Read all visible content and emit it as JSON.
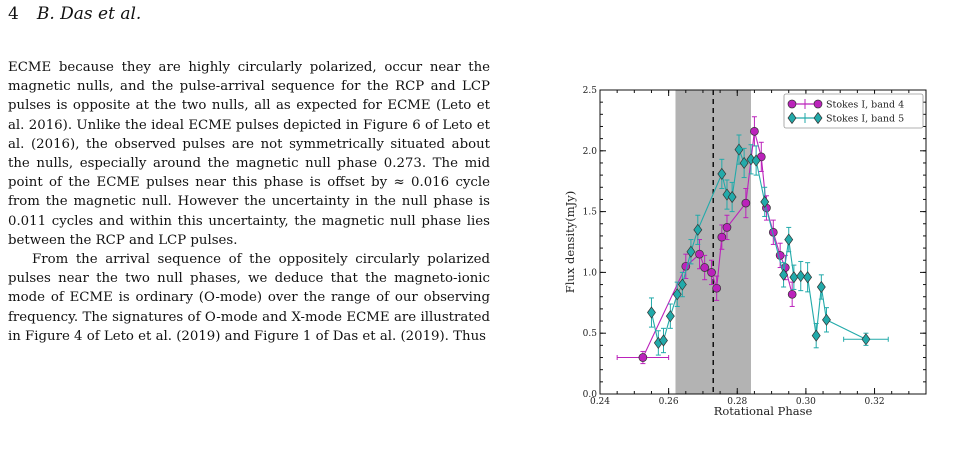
{
  "header": {
    "page_number": "4",
    "authors": "B. Das et al."
  },
  "body_text": {
    "paragraph1": "ECME because they are highly circularly polarized, occur near the magnetic nulls, and the pulse-arrival sequence for the RCP and LCP pulses is opposite at the two nulls, all as expected for ECME (Leto et al. 2016). Unlike the ideal ECME pulses depicted in Figure 6 of Leto et al. (2016), the observed pulses are not symmetrically situated about the nulls, especially around the magnetic null phase 0.273. The mid point of the ECME pulses near this phase is offset by ≈ 0.016 cycle from the magnetic null. However the uncertainty in the null phase is 0.011 cycles and within this uncertainty, the magnetic null phase lies between the RCP and LCP pulses.",
    "paragraph2": "From the arrival sequence of the oppositely circularly polarized pulses near the two null phases, we deduce that the magneto-ionic mode of ECME is ordinary (O-mode) over the range of our observing frequency. The signatures of O-mode and X-mode ECME are illustrated in Figure 4 of Leto et al. (2019) and Figure 1 of Das et al. (2019). Thus"
  },
  "chart_data": {
    "type": "scatter",
    "xlabel": "Rotational Phase",
    "ylabel": "Flux density(mJy)",
    "xlim": [
      0.24,
      0.335
    ],
    "ylim": [
      0.0,
      2.5
    ],
    "xticks": [
      "0.24",
      "0.26",
      "0.28",
      "0.30",
      "0.32"
    ],
    "yticks": [
      "0.0",
      "0.5",
      "1.0",
      "1.5",
      "2.0",
      "2.5"
    ],
    "legend_position": "top-right",
    "shaded_band": {
      "x0": 0.262,
      "x1": 0.284,
      "color": "#b3b3b3"
    },
    "vertical_line": {
      "x": 0.273,
      "style": "dashed"
    },
    "series": [
      {
        "name": "Stokes I, band 4",
        "color": "#bb22bb",
        "marker": "circle",
        "points": [
          {
            "x": 0.2525,
            "y": 0.3,
            "xerr": 0.0075,
            "yerr": 0.05
          },
          {
            "x": 0.265,
            "y": 1.05,
            "xerr": 0,
            "yerr": 0.1
          },
          {
            "x": 0.269,
            "y": 1.15,
            "xerr": 0,
            "yerr": 0.12
          },
          {
            "x": 0.2705,
            "y": 1.04,
            "xerr": 0,
            "yerr": 0.1
          },
          {
            "x": 0.2725,
            "y": 1.0,
            "xerr": 0,
            "yerr": 0.1
          },
          {
            "x": 0.274,
            "y": 0.87,
            "xerr": 0,
            "yerr": 0.1
          },
          {
            "x": 0.2755,
            "y": 1.29,
            "xerr": 0,
            "yerr": 0.1
          },
          {
            "x": 0.277,
            "y": 1.37,
            "xerr": 0,
            "yerr": 0.1
          },
          {
            "x": 0.2825,
            "y": 1.57,
            "xerr": 0,
            "yerr": 0.12
          },
          {
            "x": 0.285,
            "y": 2.16,
            "xerr": 0,
            "yerr": 0.12
          },
          {
            "x": 0.287,
            "y": 1.95,
            "xerr": 0,
            "yerr": 0.12
          },
          {
            "x": 0.2885,
            "y": 1.53,
            "xerr": 0,
            "yerr": 0.1
          },
          {
            "x": 0.2905,
            "y": 1.33,
            "xerr": 0,
            "yerr": 0.1
          },
          {
            "x": 0.2925,
            "y": 1.14,
            "xerr": 0,
            "yerr": 0.1
          },
          {
            "x": 0.294,
            "y": 1.04,
            "xerr": 0,
            "yerr": 0.1
          },
          {
            "x": 0.296,
            "y": 0.82,
            "xerr": 0,
            "yerr": 0.1
          }
        ]
      },
      {
        "name": "Stokes I, band 5",
        "color": "#22aaaa",
        "marker": "diamond",
        "points": [
          {
            "x": 0.255,
            "y": 0.67,
            "xerr": 0,
            "yerr": 0.12
          },
          {
            "x": 0.257,
            "y": 0.42,
            "xerr": 0,
            "yerr": 0.1
          },
          {
            "x": 0.2585,
            "y": 0.44,
            "xerr": 0,
            "yerr": 0.1
          },
          {
            "x": 0.2605,
            "y": 0.64,
            "xerr": 0,
            "yerr": 0.1
          },
          {
            "x": 0.2625,
            "y": 0.82,
            "xerr": 0,
            "yerr": 0.1
          },
          {
            "x": 0.264,
            "y": 0.9,
            "xerr": 0,
            "yerr": 0.1
          },
          {
            "x": 0.2665,
            "y": 1.17,
            "xerr": 0,
            "yerr": 0.1
          },
          {
            "x": 0.2685,
            "y": 1.35,
            "xerr": 0,
            "yerr": 0.12
          },
          {
            "x": 0.2755,
            "y": 1.81,
            "xerr": 0,
            "yerr": 0.12
          },
          {
            "x": 0.277,
            "y": 1.64,
            "xerr": 0,
            "yerr": 0.12
          },
          {
            "x": 0.2785,
            "y": 1.62,
            "xerr": 0,
            "yerr": 0.12
          },
          {
            "x": 0.2805,
            "y": 2.01,
            "xerr": 0,
            "yerr": 0.12
          },
          {
            "x": 0.282,
            "y": 1.9,
            "xerr": 0,
            "yerr": 0.12
          },
          {
            "x": 0.284,
            "y": 1.93,
            "xerr": 0,
            "yerr": 0.12
          },
          {
            "x": 0.2855,
            "y": 1.92,
            "xerr": 0,
            "yerr": 0.12
          },
          {
            "x": 0.288,
            "y": 1.58,
            "xerr": 0,
            "yerr": 0.12
          },
          {
            "x": 0.2935,
            "y": 0.98,
            "xerr": 0,
            "yerr": 0.1
          },
          {
            "x": 0.295,
            "y": 1.27,
            "xerr": 0,
            "yerr": 0.1
          },
          {
            "x": 0.2965,
            "y": 0.96,
            "xerr": 0,
            "yerr": 0.1
          },
          {
            "x": 0.2985,
            "y": 0.97,
            "xerr": 0,
            "yerr": 0.12
          },
          {
            "x": 0.3005,
            "y": 0.96,
            "xerr": 0,
            "yerr": 0.12
          },
          {
            "x": 0.303,
            "y": 0.48,
            "xerr": 0,
            "yerr": 0.1
          },
          {
            "x": 0.3045,
            "y": 0.88,
            "xerr": 0,
            "yerr": 0.1
          },
          {
            "x": 0.306,
            "y": 0.61,
            "xerr": 0,
            "yerr": 0.1
          },
          {
            "x": 0.3175,
            "y": 0.45,
            "xerr": 0.0065,
            "yerr": 0.05
          }
        ]
      }
    ]
  }
}
